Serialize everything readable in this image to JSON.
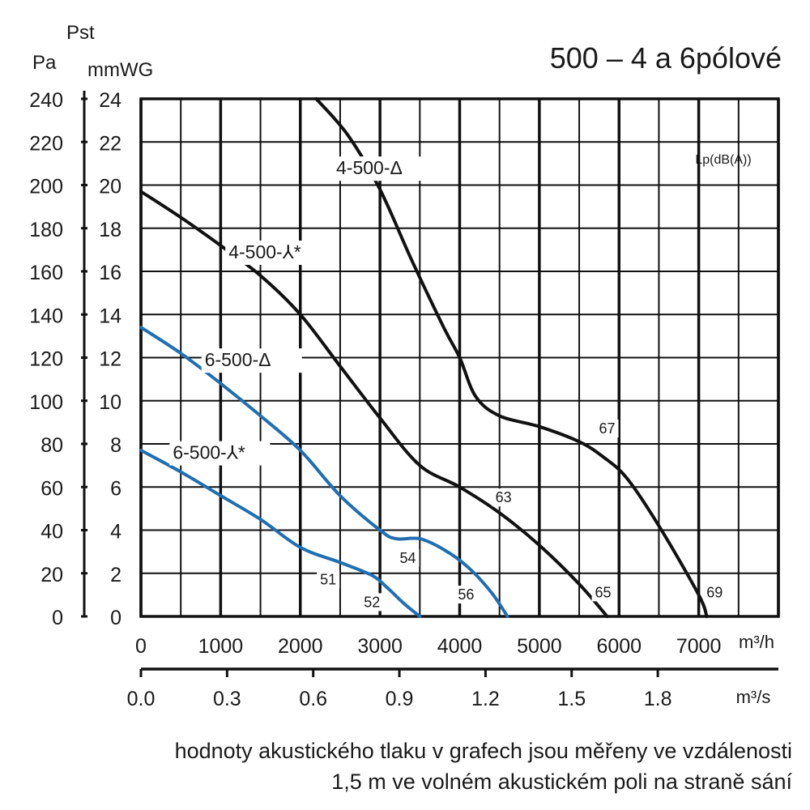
{
  "chart_data": {
    "type": "line",
    "title": "500 – 4 a 6pólové",
    "y_axis_title": "Pst",
    "y_units_pa": "Pa",
    "y_units_mmwg": "mmWG",
    "x_units_m3h": "m³/h",
    "x_units_m3s": "m³/s",
    "noise_label": "Lp(dB(A))",
    "ylim_mmwg": [
      0,
      24
    ],
    "ylim_pa": [
      0,
      240
    ],
    "xlim_m3h": [
      0,
      8000
    ],
    "xlim_m3s": [
      0.0,
      2.22
    ],
    "y_ticks_mmwg": [
      "0",
      "2",
      "4",
      "6",
      "8",
      "10",
      "12",
      "14",
      "16",
      "18",
      "20",
      "22",
      "24"
    ],
    "y_ticks_pa": [
      "0",
      "20",
      "40",
      "60",
      "80",
      "100",
      "120",
      "140",
      "160",
      "180",
      "200",
      "220",
      "240"
    ],
    "x_ticks_m3h": [
      "0",
      "1000",
      "2000",
      "3000",
      "4000",
      "5000",
      "6000",
      "7000"
    ],
    "x_ticks_m3s": [
      "0.0",
      "0.3",
      "0.6",
      "0.9",
      "1.2",
      "1.5",
      "1.8"
    ],
    "grid": true,
    "colors": {
      "black_series": "#111111",
      "blue_series": "#1f6fb2"
    },
    "series": [
      {
        "name": "4-500-Δ",
        "color": "black",
        "x": [
          2200,
          2600,
          3000,
          3400,
          3800,
          4000,
          4200,
          4500,
          5000,
          5500,
          5800,
          6100,
          6500,
          7000,
          7100
        ],
        "y": [
          24.0,
          22.3,
          19.8,
          16.5,
          13.4,
          12.0,
          10.2,
          9.3,
          8.8,
          8.1,
          7.4,
          6.4,
          4.2,
          1.0,
          0.0
        ],
        "noise_labels": [
          {
            "text": "67",
            "x": 5850,
            "y": 8.6
          },
          {
            "text": "69",
            "x": 7200,
            "y": 1.0
          }
        ]
      },
      {
        "name": "4-500-⅄*",
        "color": "black",
        "x": [
          0,
          500,
          1000,
          1500,
          2000,
          2500,
          3000,
          3500,
          4000,
          4500,
          5000,
          5500,
          5850
        ],
        "y": [
          19.7,
          18.5,
          17.2,
          15.8,
          14.0,
          11.6,
          9.2,
          7.0,
          6.0,
          4.8,
          3.3,
          1.5,
          0.0
        ],
        "noise_labels": [
          {
            "text": "63",
            "x": 4550,
            "y": 5.4
          },
          {
            "text": "65",
            "x": 5800,
            "y": 1.0
          }
        ]
      },
      {
        "name": "6-500-Δ",
        "color": "blue",
        "x": [
          0,
          500,
          1000,
          1500,
          2000,
          2500,
          3000,
          3200,
          3500,
          3800,
          4100,
          4400,
          4600
        ],
        "y": [
          13.4,
          12.2,
          10.8,
          9.3,
          7.7,
          5.6,
          4.0,
          3.6,
          3.6,
          3.1,
          2.3,
          1.1,
          0.0
        ],
        "noise_labels": [
          {
            "text": "54",
            "x": 3350,
            "y": 2.6
          },
          {
            "text": "56",
            "x": 4080,
            "y": 0.9
          }
        ]
      },
      {
        "name": "6-500-⅄*",
        "color": "blue",
        "x": [
          0,
          500,
          1000,
          1500,
          2000,
          2500,
          2900,
          3100,
          3300,
          3500
        ],
        "y": [
          7.7,
          6.7,
          5.6,
          4.5,
          3.2,
          2.5,
          1.9,
          1.3,
          0.6,
          0.0
        ],
        "noise_labels": [
          {
            "text": "51",
            "x": 2350,
            "y": 1.6
          },
          {
            "text": "52",
            "x": 2900,
            "y": 0.55
          }
        ]
      }
    ],
    "curve_labels": [
      {
        "series": 0,
        "text": "4-500-Δ",
        "x": 2450,
        "y": 20.5
      },
      {
        "series": 1,
        "text": "4-500-⅄*",
        "x": 1100,
        "y": 16.6
      },
      {
        "series": 2,
        "text": "6-500-Δ",
        "x": 800,
        "y": 11.6
      },
      {
        "series": 3,
        "text": "6-500-⅄*",
        "x": 400,
        "y": 7.3
      }
    ]
  },
  "footnote": {
    "line1": "hodnoty akustického tlaku v grafech jsou měřeny ve vzdálenosti",
    "line2": "1,5 m ve volném akustickém poli na straně sání"
  }
}
